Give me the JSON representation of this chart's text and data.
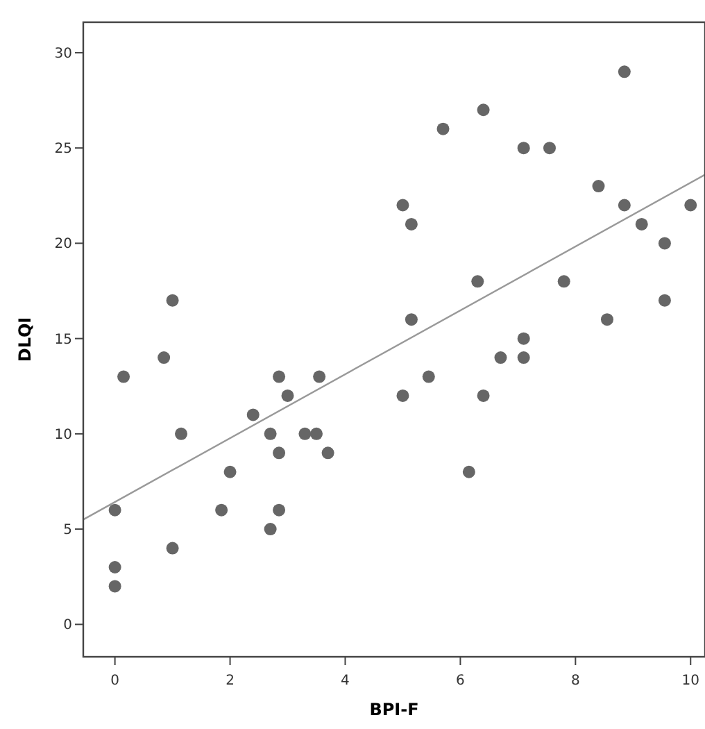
{
  "chart_data": {
    "type": "scatter",
    "xlabel": "BPI-F",
    "ylabel": "DLQI",
    "xlim": [
      -0.55,
      10.25
    ],
    "ylim": [
      -1.7,
      31.6
    ],
    "xticks": [
      0,
      2,
      4,
      6,
      8,
      10
    ],
    "yticks": [
      0,
      5,
      10,
      15,
      20,
      25,
      30
    ],
    "grid": false,
    "marker": "circle",
    "series": [
      {
        "color": "#666666",
        "x": [
          0,
          0,
          0,
          0.15,
          1.0,
          0.85,
          1.0,
          1.15,
          1.85,
          2.0,
          2.4,
          2.7,
          2.85,
          2.85,
          2.85,
          2.7,
          3.0,
          3.3,
          3.5,
          3.55,
          3.7,
          8.85,
          6.4,
          5.7,
          7.1,
          7.55,
          8.4,
          5.0,
          8.85,
          10.0,
          5.15,
          9.15,
          9.55,
          6.3,
          7.8,
          5.15,
          9.55,
          8.55,
          7.1,
          6.7,
          7.1,
          5.45,
          5.0,
          6.4,
          6.15
        ],
        "values": [
          6,
          3,
          2,
          13,
          17,
          14,
          4,
          10,
          6,
          8,
          11,
          10,
          13,
          9,
          6,
          5,
          12,
          10,
          10,
          13,
          9,
          29,
          27,
          26,
          25,
          25,
          23,
          22,
          22,
          22,
          21,
          21,
          20,
          18,
          18,
          16,
          17,
          16,
          15,
          14,
          14,
          13,
          12,
          12,
          8
        ]
      },
      {
        "type": "line",
        "color": "#999999",
        "marker": "none",
        "x": [
          -0.55,
          10.25
        ],
        "values": [
          5.5,
          23.6
        ]
      }
    ]
  }
}
